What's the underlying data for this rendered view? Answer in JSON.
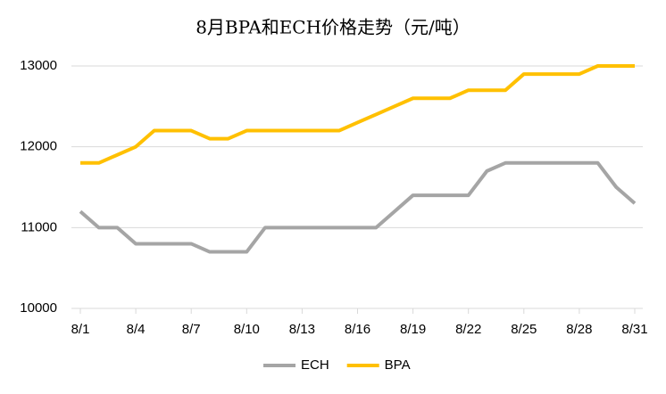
{
  "chart_data": {
    "type": "line",
    "title": "8月BPA和ECH价格走势（元/吨）",
    "categories": [
      "8/1",
      null,
      null,
      "8/4",
      null,
      null,
      "8/7",
      null,
      null,
      "8/10",
      null,
      null,
      "8/13",
      null,
      null,
      "8/16",
      null,
      null,
      "8/19",
      null,
      null,
      "8/22",
      null,
      null,
      "8/25",
      null,
      null,
      "8/28",
      null,
      null,
      "8/31"
    ],
    "series": [
      {
        "name": "ECH",
        "color": "#a5a5a5",
        "values": [
          11200,
          11000,
          11000,
          10800,
          10800,
          10800,
          10800,
          10700,
          10700,
          10700,
          11000,
          11000,
          11000,
          11000,
          11000,
          11000,
          11000,
          11200,
          11400,
          11400,
          11400,
          11400,
          11700,
          11800,
          11800,
          11800,
          11800,
          11800,
          11800,
          11500,
          11300
        ]
      },
      {
        "name": "BPA",
        "color": "#ffc000",
        "values": [
          11800,
          11800,
          11900,
          12000,
          12200,
          12200,
          12200,
          12100,
          12100,
          12200,
          12200,
          12200,
          12200,
          12200,
          12200,
          12300,
          12400,
          12500,
          12600,
          12600,
          12600,
          12700,
          12700,
          12700,
          12900,
          12900,
          12900,
          12900,
          13000,
          13000,
          13000
        ]
      }
    ],
    "ylim": [
      10000,
      13000
    ],
    "yticks": [
      10000,
      11000,
      12000,
      13000
    ],
    "grid": true,
    "legend": "bottom"
  }
}
